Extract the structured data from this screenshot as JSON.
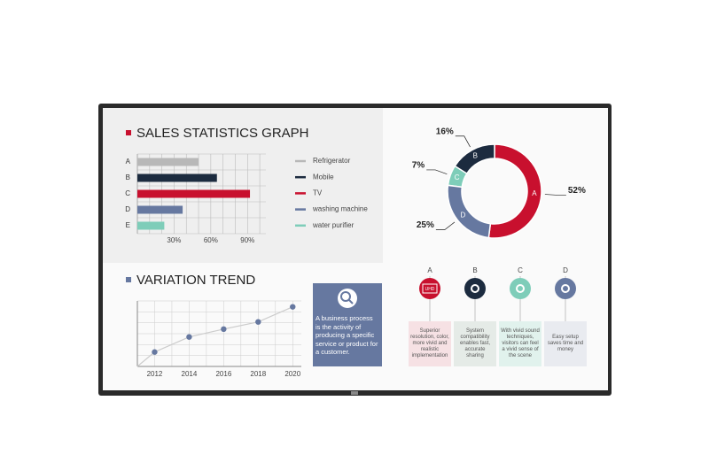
{
  "chart_data": [
    {
      "type": "bar",
      "title": "SALES STATISTICS GRAPH",
      "categories": [
        "A",
        "B",
        "C",
        "D",
        "E"
      ],
      "values": [
        50,
        65,
        92,
        37,
        22
      ],
      "colors": [
        "#b8b8b8",
        "#1c2b3f",
        "#c8102e",
        "#6678a0",
        "#7ecdb9"
      ],
      "legend": [
        "Refrigerator",
        "Mobile",
        "TV",
        "washing machine",
        "water purifier"
      ],
      "xlim": [
        0,
        105
      ],
      "xticks": [
        {
          "value": 30,
          "label": "30%"
        },
        {
          "value": 60,
          "label": "60%"
        },
        {
          "value": 90,
          "label": "90%"
        }
      ],
      "xgrid": [
        10,
        20,
        30,
        40,
        50,
        60,
        70,
        80,
        90,
        100
      ]
    },
    {
      "type": "donut",
      "categories": [
        "A",
        "B",
        "C",
        "D"
      ],
      "values": [
        52,
        16,
        7,
        25
      ],
      "value_labels": [
        "52%",
        "16%",
        "7%",
        "25%"
      ],
      "colors": [
        "#c8102e",
        "#1c2b3f",
        "#7ecdb9",
        "#6678a0"
      ]
    },
    {
      "type": "line",
      "title": "VARIATION TREND",
      "x": [
        2012,
        2014,
        2016,
        2018,
        2020
      ],
      "values": [
        22,
        45,
        57,
        68,
        91
      ],
      "xlim": [
        2011,
        2020.5
      ],
      "ylim": [
        0,
        100
      ],
      "xticks": [
        2012,
        2014,
        2016,
        2018,
        2020
      ],
      "color": "#6678a0"
    }
  ],
  "info_box": {
    "text": "A business process is the activity of producing a specific service or product for a customer."
  },
  "features": [
    {
      "label": "A",
      "icon_text": "UHD",
      "text": "Superior resolution, color, more vivid and realistic implementation"
    },
    {
      "label": "B",
      "text": "System compatibility enables fast, accurate sharing"
    },
    {
      "label": "C",
      "text": "With vivid sound techniques, visitors can feel a vivid sense of the scene"
    },
    {
      "label": "D",
      "text": "Easy setup saves time and money"
    }
  ]
}
